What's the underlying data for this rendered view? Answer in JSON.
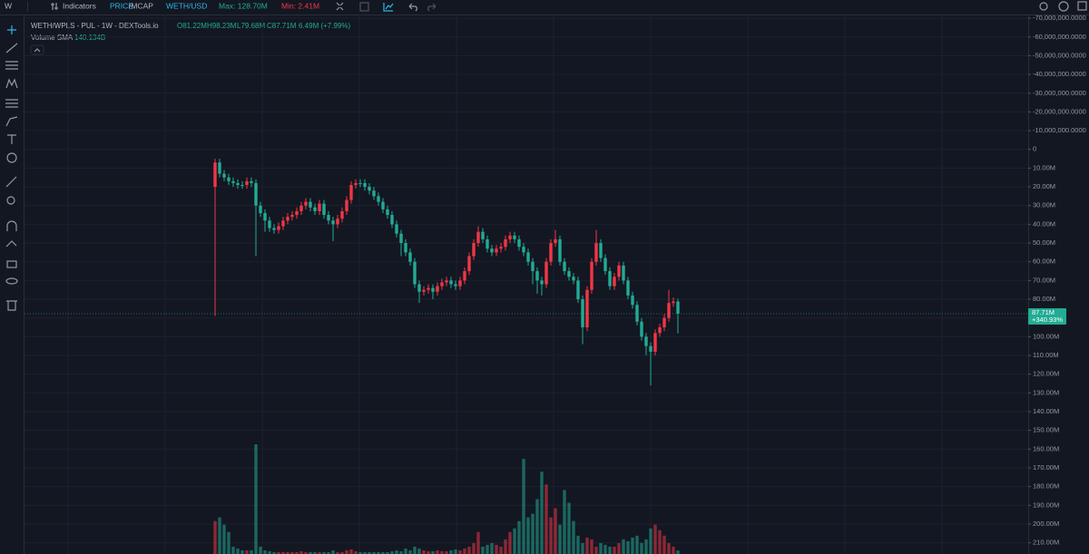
{
  "toolbar": {
    "interval": "W",
    "indicators": "Indicators",
    "mode_active": "PRICE",
    "mode_other": "/MCAP",
    "pair": "WETH/USD",
    "max": "Max: 128.70M",
    "min": "Min: 2.41M"
  },
  "chart_data": {
    "type": "candlestick",
    "title": "WETH/WPLS - PUL - 1W - DEXTools.io",
    "ohlc_legend": {
      "open": "O81.22M",
      "high": "H98.23M",
      "low": "L79.68M",
      "close": "C87.71M",
      "change": "6.49M (+7.99%)"
    },
    "volume_label": "Volume SMA",
    "volume_sma": "140.134B",
    "last_price": {
      "value": 87710000,
      "label": "87.71M"
    },
    "last_change": "+340.93%",
    "up_color": "#22ab94",
    "down_color": "#f23645",
    "inverted": true,
    "ylim": [
      -72000000,
      216000000
    ],
    "yticks": [
      {
        "value": -70000000,
        "label": "-70,000,000.0000"
      },
      {
        "value": -60000000,
        "label": "-60,000,000.0000"
      },
      {
        "value": -50000000,
        "label": "-50,000,000.0000"
      },
      {
        "value": -40000000,
        "label": "-40,000,000.0000"
      },
      {
        "value": -30000000,
        "label": "-30,000,000.0000"
      },
      {
        "value": -20000000,
        "label": "-20,000,000.0000"
      },
      {
        "value": -10000000,
        "label": "-10,000,000.0000"
      },
      0,
      {
        "value": 10000000,
        "label": "10.00M"
      },
      {
        "value": 20000000,
        "label": "20.00M"
      },
      {
        "value": 30000000,
        "label": "30.00M"
      },
      {
        "value": 40000000,
        "label": "40.00M"
      },
      {
        "value": 50000000,
        "label": "50.00M"
      },
      {
        "value": 60000000,
        "label": "60.00M"
      },
      {
        "value": 70000000,
        "label": "70.00M"
      },
      {
        "value": 80000000,
        "label": "80.00M"
      },
      {
        "value": 90000000,
        "label": "90.00M"
      },
      {
        "value": 100000000,
        "label": "100.00M"
      },
      {
        "value": 110000000,
        "label": "110.00M"
      },
      {
        "value": 120000000,
        "label": "120.00M"
      },
      {
        "value": 130000000,
        "label": "130.00M"
      },
      {
        "value": 140000000,
        "label": "140.00M"
      },
      {
        "value": 150000000,
        "label": "150.00M"
      },
      {
        "value": 160000000,
        "label": "160.00M"
      },
      {
        "value": 170000000,
        "label": "170.00M"
      },
      {
        "value": 180000000,
        "label": "180.00M"
      },
      {
        "value": 190000000,
        "label": "190.00M"
      },
      {
        "value": 200000000,
        "label": "200.00M"
      },
      {
        "value": 210000000,
        "label": "210.00M"
      }
    ],
    "open": [
      20000000,
      7000000,
      13000000,
      15000000,
      17000000,
      18000000,
      19000000,
      19000000,
      17000000,
      18000000,
      30000000,
      34000000,
      38000000,
      42000000,
      43000000,
      41000000,
      38000000,
      36000000,
      35000000,
      33000000,
      30000000,
      28000000,
      31000000,
      33000000,
      29000000,
      35000000,
      38000000,
      40000000,
      37000000,
      33000000,
      27000000,
      19000000,
      18000000,
      18000000,
      20000000,
      22000000,
      25000000,
      28000000,
      32000000,
      35000000,
      40000000,
      45000000,
      50000000,
      55000000,
      60000000,
      72000000,
      76000000,
      75000000,
      74000000,
      76000000,
      73000000,
      71000000,
      70000000,
      72000000,
      73000000,
      70000000,
      65000000,
      57000000,
      50000000,
      44000000,
      48000000,
      53000000,
      55000000,
      53000000,
      52000000,
      48000000,
      46000000,
      48000000,
      52000000,
      55000000,
      60000000,
      65000000,
      70000000,
      72000000,
      60000000,
      50000000,
      48000000,
      60000000,
      65000000,
      68000000,
      70000000,
      80000000,
      95000000,
      75000000,
      60000000,
      50000000,
      58000000,
      65000000,
      73000000,
      68000000,
      62000000,
      70000000,
      78000000,
      83000000,
      92000000,
      100000000,
      105000000,
      108000000,
      98000000,
      95000000,
      90000000,
      82000000,
      81220000
    ],
    "high": [
      89000000,
      15000000,
      17000000,
      19000000,
      20000000,
      21000000,
      21000000,
      21000000,
      20000000,
      57000000,
      36000000,
      44000000,
      44000000,
      45000000,
      45000000,
      43000000,
      40000000,
      38000000,
      37000000,
      35000000,
      32000000,
      33000000,
      35000000,
      35000000,
      37000000,
      40000000,
      49000000,
      42000000,
      39000000,
      35000000,
      29000000,
      21000000,
      20000000,
      22000000,
      24000000,
      27000000,
      30000000,
      34000000,
      37000000,
      42000000,
      47000000,
      57000000,
      57000000,
      62000000,
      74000000,
      82000000,
      78000000,
      77000000,
      80000000,
      78000000,
      75000000,
      73000000,
      74000000,
      75000000,
      75000000,
      72000000,
      67000000,
      59000000,
      52000000,
      50000000,
      55000000,
      57000000,
      57000000,
      55000000,
      54000000,
      50000000,
      50000000,
      54000000,
      57000000,
      62000000,
      72000000,
      77000000,
      78000000,
      74000000,
      62000000,
      52000000,
      62000000,
      67000000,
      70000000,
      72000000,
      82000000,
      104000000,
      97000000,
      77000000,
      62000000,
      60000000,
      67000000,
      75000000,
      75000000,
      70000000,
      72000000,
      80000000,
      85000000,
      94000000,
      102000000,
      110000000,
      126000000,
      110000000,
      100000000,
      97000000,
      92000000,
      84000000,
      98230000
    ],
    "low": [
      5000000,
      5000000,
      11000000,
      13000000,
      15000000,
      16000000,
      17000000,
      15000000,
      15000000,
      16000000,
      28000000,
      32000000,
      36000000,
      40000000,
      39000000,
      36000000,
      34000000,
      33000000,
      31000000,
      28000000,
      26000000,
      26000000,
      29000000,
      27000000,
      27000000,
      33000000,
      36000000,
      35000000,
      31000000,
      25000000,
      17000000,
      16000000,
      16000000,
      16000000,
      18000000,
      20000000,
      23000000,
      26000000,
      30000000,
      33000000,
      38000000,
      43000000,
      48000000,
      53000000,
      58000000,
      70000000,
      73000000,
      72000000,
      72000000,
      71000000,
      69000000,
      68000000,
      68000000,
      70000000,
      68000000,
      63000000,
      55000000,
      48000000,
      41000000,
      42000000,
      46000000,
      51000000,
      51000000,
      50000000,
      46000000,
      44000000,
      44000000,
      46000000,
      50000000,
      53000000,
      58000000,
      63000000,
      68000000,
      58000000,
      48000000,
      43000000,
      46000000,
      58000000,
      63000000,
      66000000,
      68000000,
      78000000,
      73000000,
      58000000,
      43000000,
      48000000,
      56000000,
      63000000,
      66000000,
      60000000,
      60000000,
      68000000,
      76000000,
      81000000,
      90000000,
      98000000,
      103000000,
      96000000,
      93000000,
      88000000,
      75000000,
      79000000,
      79680000
    ],
    "close": [
      7000000,
      13000000,
      15000000,
      17000000,
      18000000,
      19000000,
      19000000,
      17000000,
      18000000,
      30000000,
      34000000,
      38000000,
      42000000,
      43000000,
      41000000,
      38000000,
      36000000,
      35000000,
      33000000,
      30000000,
      28000000,
      31000000,
      33000000,
      29000000,
      35000000,
      38000000,
      40000000,
      37000000,
      33000000,
      27000000,
      19000000,
      18000000,
      18000000,
      20000000,
      22000000,
      25000000,
      28000000,
      32000000,
      35000000,
      40000000,
      45000000,
      50000000,
      55000000,
      60000000,
      72000000,
      76000000,
      75000000,
      74000000,
      76000000,
      73000000,
      71000000,
      70000000,
      72000000,
      73000000,
      70000000,
      65000000,
      57000000,
      50000000,
      44000000,
      48000000,
      53000000,
      55000000,
      53000000,
      52000000,
      48000000,
      46000000,
      48000000,
      52000000,
      55000000,
      60000000,
      65000000,
      70000000,
      72000000,
      60000000,
      50000000,
      48000000,
      60000000,
      65000000,
      68000000,
      70000000,
      80000000,
      95000000,
      75000000,
      60000000,
      50000000,
      58000000,
      65000000,
      73000000,
      68000000,
      62000000,
      70000000,
      78000000,
      83000000,
      92000000,
      100000000,
      105000000,
      108000000,
      98000000,
      95000000,
      90000000,
      82000000,
      81220000,
      87710000
    ],
    "volume": [
      180,
      200,
      160,
      120,
      40,
      30,
      20,
      20,
      20,
      600,
      40,
      20,
      15,
      10,
      10,
      10,
      10,
      10,
      10,
      15,
      10,
      10,
      10,
      10,
      10,
      10,
      20,
      10,
      10,
      20,
      25,
      15,
      10,
      10,
      10,
      10,
      10,
      10,
      10,
      15,
      20,
      15,
      30,
      20,
      40,
      30,
      20,
      15,
      15,
      20,
      15,
      15,
      20,
      25,
      20,
      30,
      40,
      60,
      120,
      40,
      50,
      60,
      50,
      40,
      80,
      120,
      140,
      180,
      520,
      200,
      220,
      300,
      450,
      380,
      200,
      250,
      160,
      350,
      280,
      180,
      100,
      60,
      90,
      80,
      40,
      60,
      50,
      40,
      40,
      60,
      80,
      70,
      90,
      100,
      60,
      80,
      140,
      160,
      130,
      100,
      60,
      40,
      20
    ]
  }
}
